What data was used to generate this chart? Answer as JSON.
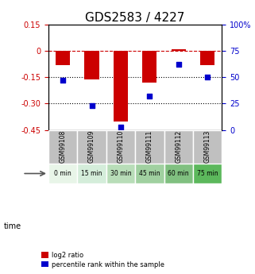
{
  "title": "GDS2583 / 4227",
  "samples": [
    "GSM99108",
    "GSM99109",
    "GSM99110",
    "GSM99111",
    "GSM99112",
    "GSM99113"
  ],
  "time_labels": [
    "0 min",
    "15 min",
    "30 min",
    "45 min",
    "60 min",
    "75 min"
  ],
  "time_colors": [
    "#e8f5e8",
    "#d4edda",
    "#b8ddb8",
    "#a0d0a0",
    "#80c080",
    "#5cb85c"
  ],
  "log2_ratio": [
    -0.08,
    -0.16,
    -0.4,
    -0.18,
    0.01,
    -0.08
  ],
  "percentile_rank": [
    47,
    23,
    3,
    32,
    62,
    50
  ],
  "bar_color": "#cc0000",
  "dot_color": "#0000cc",
  "ylim_left": [
    -0.45,
    0.15
  ],
  "ylim_right": [
    0,
    100
  ],
  "yticks_left": [
    0.15,
    0.0,
    -0.15,
    -0.3,
    -0.45
  ],
  "yticks_left_labels": [
    "0.15",
    "0",
    "-0.15",
    "-0.30",
    "-0.45"
  ],
  "yticks_right": [
    100,
    75,
    50,
    25,
    0
  ],
  "yticks_right_labels": [
    "100%",
    "75",
    "50",
    "25",
    "0"
  ],
  "hlines_dotted": [
    -0.15,
    -0.3
  ],
  "legend_labels": [
    "log2 ratio",
    "percentile rank within the sample"
  ],
  "legend_colors": [
    "#cc0000",
    "#0000cc"
  ],
  "gsm_bg": "#c0c0c0",
  "font_size_title": 11,
  "font_size_ticks": 7,
  "font_size_small": 5.5
}
